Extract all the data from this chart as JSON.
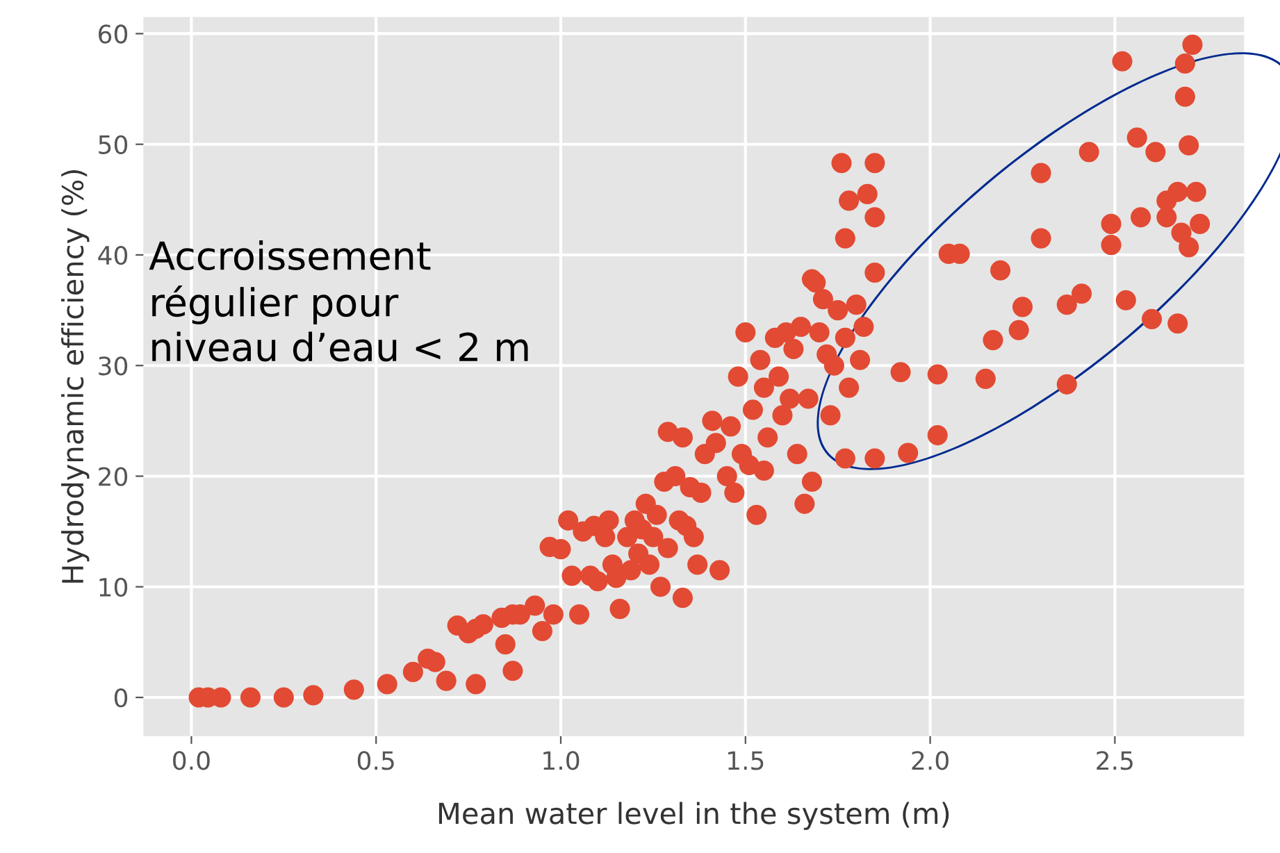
{
  "chart_data": {
    "type": "scatter",
    "xlabel": "Mean water level in the system (m)",
    "ylabel": "Hydrodynamic efficiency (%)",
    "annotations": [
      "Accroissement\nrégulier pour\nniveau d’eau < 2 m"
    ],
    "x": [
      0.02,
      0.045,
      0.08,
      0.16,
      0.25,
      0.33,
      0.44,
      0.53,
      0.6,
      0.64,
      0.66,
      0.69,
      0.72,
      0.75,
      0.77,
      0.79,
      0.77,
      0.84,
      0.85,
      0.87,
      0.87,
      0.89,
      0.93,
      0.95,
      0.97,
      0.98,
      1.0,
      1.02,
      1.03,
      1.05,
      1.06,
      1.08,
      1.09,
      1.1,
      1.12,
      1.13,
      1.14,
      1.15,
      1.16,
      1.18,
      1.19,
      1.2,
      1.21,
      1.22,
      1.23,
      1.24,
      1.25,
      1.26,
      1.27,
      1.28,
      1.29,
      1.29,
      1.31,
      1.32,
      1.33,
      1.33,
      1.34,
      1.35,
      1.36,
      1.37,
      1.38,
      1.39,
      1.41,
      1.42,
      1.43,
      1.45,
      1.46,
      1.47,
      1.48,
      1.49,
      1.5,
      1.51,
      1.52,
      1.53,
      1.54,
      1.55,
      1.55,
      1.56,
      1.58,
      1.59,
      1.6,
      1.61,
      1.62,
      1.63,
      1.64,
      1.65,
      1.66,
      1.67,
      1.68,
      1.69,
      1.7,
      1.71,
      1.72,
      1.73,
      1.74,
      1.75,
      1.77,
      1.78,
      1.8,
      1.81,
      1.82,
      1.76,
      1.85,
      1.78,
      1.83,
      1.85,
      1.77,
      1.85,
      1.68,
      2.05,
      2.08,
      2.19,
      2.3,
      2.3,
      2.43,
      2.52,
      2.71,
      2.69,
      2.69,
      2.56,
      2.61,
      2.7,
      2.49,
      2.49,
      2.57,
      2.64,
      2.67,
      2.72,
      2.64,
      2.68,
      2.7,
      2.73,
      2.25,
      2.24,
      2.41,
      2.37,
      2.53,
      2.6,
      2.67,
      2.17,
      2.37,
      2.15,
      2.02,
      1.92,
      2.02,
      1.94,
      1.85,
      1.77
    ],
    "values": [
      0,
      0,
      0,
      0,
      0,
      0.2,
      0.7,
      1.2,
      2.3,
      3.5,
      3.2,
      1.5,
      6.5,
      5.8,
      6.2,
      6.6,
      1.2,
      7.2,
      4.8,
      7.5,
      2.4,
      7.5,
      8.3,
      6.0,
      13.6,
      7.5,
      13.4,
      16,
      11,
      7.5,
      15,
      11,
      15.5,
      10.5,
      14.5,
      16,
      12,
      10.8,
      8,
      14.5,
      11.5,
      16,
      13,
      15.2,
      17.5,
      12,
      14.5,
      16.5,
      10,
      19.5,
      13.5,
      24,
      20,
      16,
      9,
      23.5,
      15.5,
      19,
      14.5,
      12,
      18.5,
      22,
      25,
      23,
      11.5,
      20,
      24.5,
      18.5,
      29,
      22,
      33,
      21,
      26,
      16.5,
      30.5,
      28,
      20.5,
      23.5,
      32.5,
      29,
      25.5,
      33,
      27,
      31.5,
      22,
      33.5,
      17.5,
      27,
      19.5,
      37.5,
      33,
      36,
      31,
      25.5,
      30,
      35,
      32.5,
      28,
      35.5,
      30.5,
      33.5,
      48.3,
      48.3,
      44.9,
      45.5,
      43.4,
      41.5,
      38.4,
      37.8,
      40.1,
      40.1,
      38.6,
      47.4,
      41.5,
      49.3,
      57.5,
      59,
      57.3,
      54.3,
      50.6,
      49.3,
      49.9,
      42.8,
      40.9,
      43.4,
      44.9,
      45.7,
      45.7,
      43.4,
      42.0,
      40.7,
      42.8,
      35.3,
      33.2,
      36.5,
      35.5,
      35.9,
      34.2,
      33.8,
      32.3,
      28.3,
      28.8,
      29.2,
      29.4,
      23.7,
      22.1,
      21.6,
      21.6
    ],
    "color": "#e24a33",
    "marker": "circle",
    "grid": true,
    "xlim": [
      -0.13,
      2.85
    ],
    "ylim": [
      -3.5,
      61.5
    ],
    "xticks": [
      {
        "value": 0,
        "label": "0.0"
      },
      {
        "value": 0.5,
        "label": "0.5"
      },
      {
        "value": 1,
        "label": "1.0"
      },
      {
        "value": 1.5,
        "label": "1.5"
      },
      {
        "value": 2,
        "label": "2.0"
      },
      {
        "value": 2.5,
        "label": "2.5"
      }
    ],
    "yticks": [
      0,
      10,
      20,
      30,
      40,
      50,
      60
    ]
  }
}
